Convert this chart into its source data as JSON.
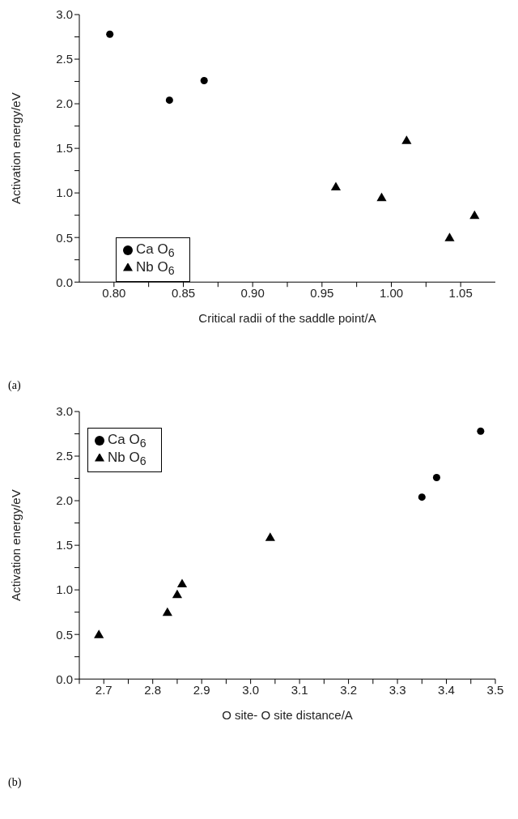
{
  "chart_data": [
    {
      "type": "scatter",
      "xlabel": "Critical radii of the saddle point/A",
      "ylabel": "Activation energy/eV",
      "annotations": [
        "(a)"
      ],
      "series": [
        {
          "name": "Ca O$_{6}$",
          "color": "#000000",
          "marker": "circle",
          "x": [
            0.797,
            0.84,
            0.865
          ],
          "values": [
            2.78,
            2.04,
            2.26
          ]
        },
        {
          "name": "Nb O$_{6}$",
          "color": "#000000",
          "marker": "triangle",
          "x": [
            0.96,
            0.993,
            1.011,
            1.042,
            1.06
          ],
          "values": [
            1.06,
            0.94,
            1.58,
            0.49,
            0.74
          ]
        }
      ],
      "xlim": [
        0.775,
        1.075
      ],
      "xticks": [
        {
          "value": 0.8,
          "label": "0.80"
        },
        {
          "value": 0.825,
          "label": null
        },
        {
          "value": 0.85,
          "label": "0.85"
        },
        {
          "value": 0.875,
          "label": null
        },
        {
          "value": 0.9,
          "label": "0.90"
        },
        {
          "value": 0.925,
          "label": null
        },
        {
          "value": 0.95,
          "label": "0.95"
        },
        {
          "value": 0.975,
          "label": null
        },
        {
          "value": 1.0,
          "label": "1.00"
        },
        {
          "value": 1.025,
          "label": null
        },
        {
          "value": 1.05,
          "label": "1.05"
        }
      ],
      "ylim": [
        0,
        3
      ],
      "yticks": [
        {
          "value": 0,
          "label": "0.0"
        },
        {
          "value": 0.25,
          "label": null
        },
        {
          "value": 0.5,
          "label": "0.5"
        },
        {
          "value": 0.75,
          "label": null
        },
        {
          "value": 1,
          "label": "1.0"
        },
        {
          "value": 1.25,
          "label": null
        },
        {
          "value": 1.5,
          "label": "1.5"
        },
        {
          "value": 1.75,
          "label": null
        },
        {
          "value": 2,
          "label": "2.0"
        },
        {
          "value": 2.25,
          "label": null
        },
        {
          "value": 2.5,
          "label": "2.5"
        },
        {
          "value": 2.75,
          "label": null
        },
        {
          "value": 3,
          "label": "3.0"
        }
      ],
      "grid": false,
      "legend": "left"
    },
    {
      "type": "scatter",
      "xlabel": "O site- O site distance/A",
      "ylabel": "Activation energy/eV",
      "annotations": [
        "(b)"
      ],
      "series": [
        {
          "name": "Ca O$_{6}$",
          "color": "#000000",
          "marker": "circle",
          "x": [
            3.35,
            3.38,
            3.47
          ],
          "values": [
            2.04,
            2.26,
            2.78
          ]
        },
        {
          "name": "Nb O$_{6}$",
          "color": "#000000",
          "marker": "triangle",
          "x": [
            2.69,
            2.83,
            2.85,
            2.86,
            3.04
          ],
          "values": [
            0.49,
            0.74,
            0.94,
            1.06,
            1.58
          ]
        }
      ],
      "xlim": [
        2.65,
        3.5
      ],
      "xticks": [
        {
          "value": 2.65,
          "label": null
        },
        {
          "value": 2.7,
          "label": "2.7"
        },
        {
          "value": 2.75,
          "label": null
        },
        {
          "value": 2.8,
          "label": "2.8"
        },
        {
          "value": 2.85,
          "label": null
        },
        {
          "value": 2.9,
          "label": "2.9"
        },
        {
          "value": 2.95,
          "label": null
        },
        {
          "value": 3.0,
          "label": "3.0"
        },
        {
          "value": 3.05,
          "label": null
        },
        {
          "value": 3.1,
          "label": "3.1"
        },
        {
          "value": 3.15,
          "label": null
        },
        {
          "value": 3.2,
          "label": "3.2"
        },
        {
          "value": 3.25,
          "label": null
        },
        {
          "value": 3.3,
          "label": "3.3"
        },
        {
          "value": 3.35,
          "label": null
        },
        {
          "value": 3.4,
          "label": "3.4"
        },
        {
          "value": 3.45,
          "label": null
        },
        {
          "value": 3.5,
          "label": "3.5"
        }
      ],
      "ylim": [
        0,
        3
      ],
      "yticks": [
        {
          "value": 0,
          "label": "0.0"
        },
        {
          "value": 0.25,
          "label": null
        },
        {
          "value": 0.5,
          "label": "0.5"
        },
        {
          "value": 0.75,
          "label": null
        },
        {
          "value": 1,
          "label": "1.0"
        },
        {
          "value": 1.25,
          "label": null
        },
        {
          "value": 1.5,
          "label": "1.5"
        },
        {
          "value": 1.75,
          "label": null
        },
        {
          "value": 2,
          "label": "2.0"
        },
        {
          "value": 2.25,
          "label": null
        },
        {
          "value": 2.5,
          "label": "2.5"
        },
        {
          "value": 2.75,
          "label": null
        },
        {
          "value": 3,
          "label": "3.0"
        }
      ],
      "grid": false,
      "legend": "top left"
    }
  ]
}
